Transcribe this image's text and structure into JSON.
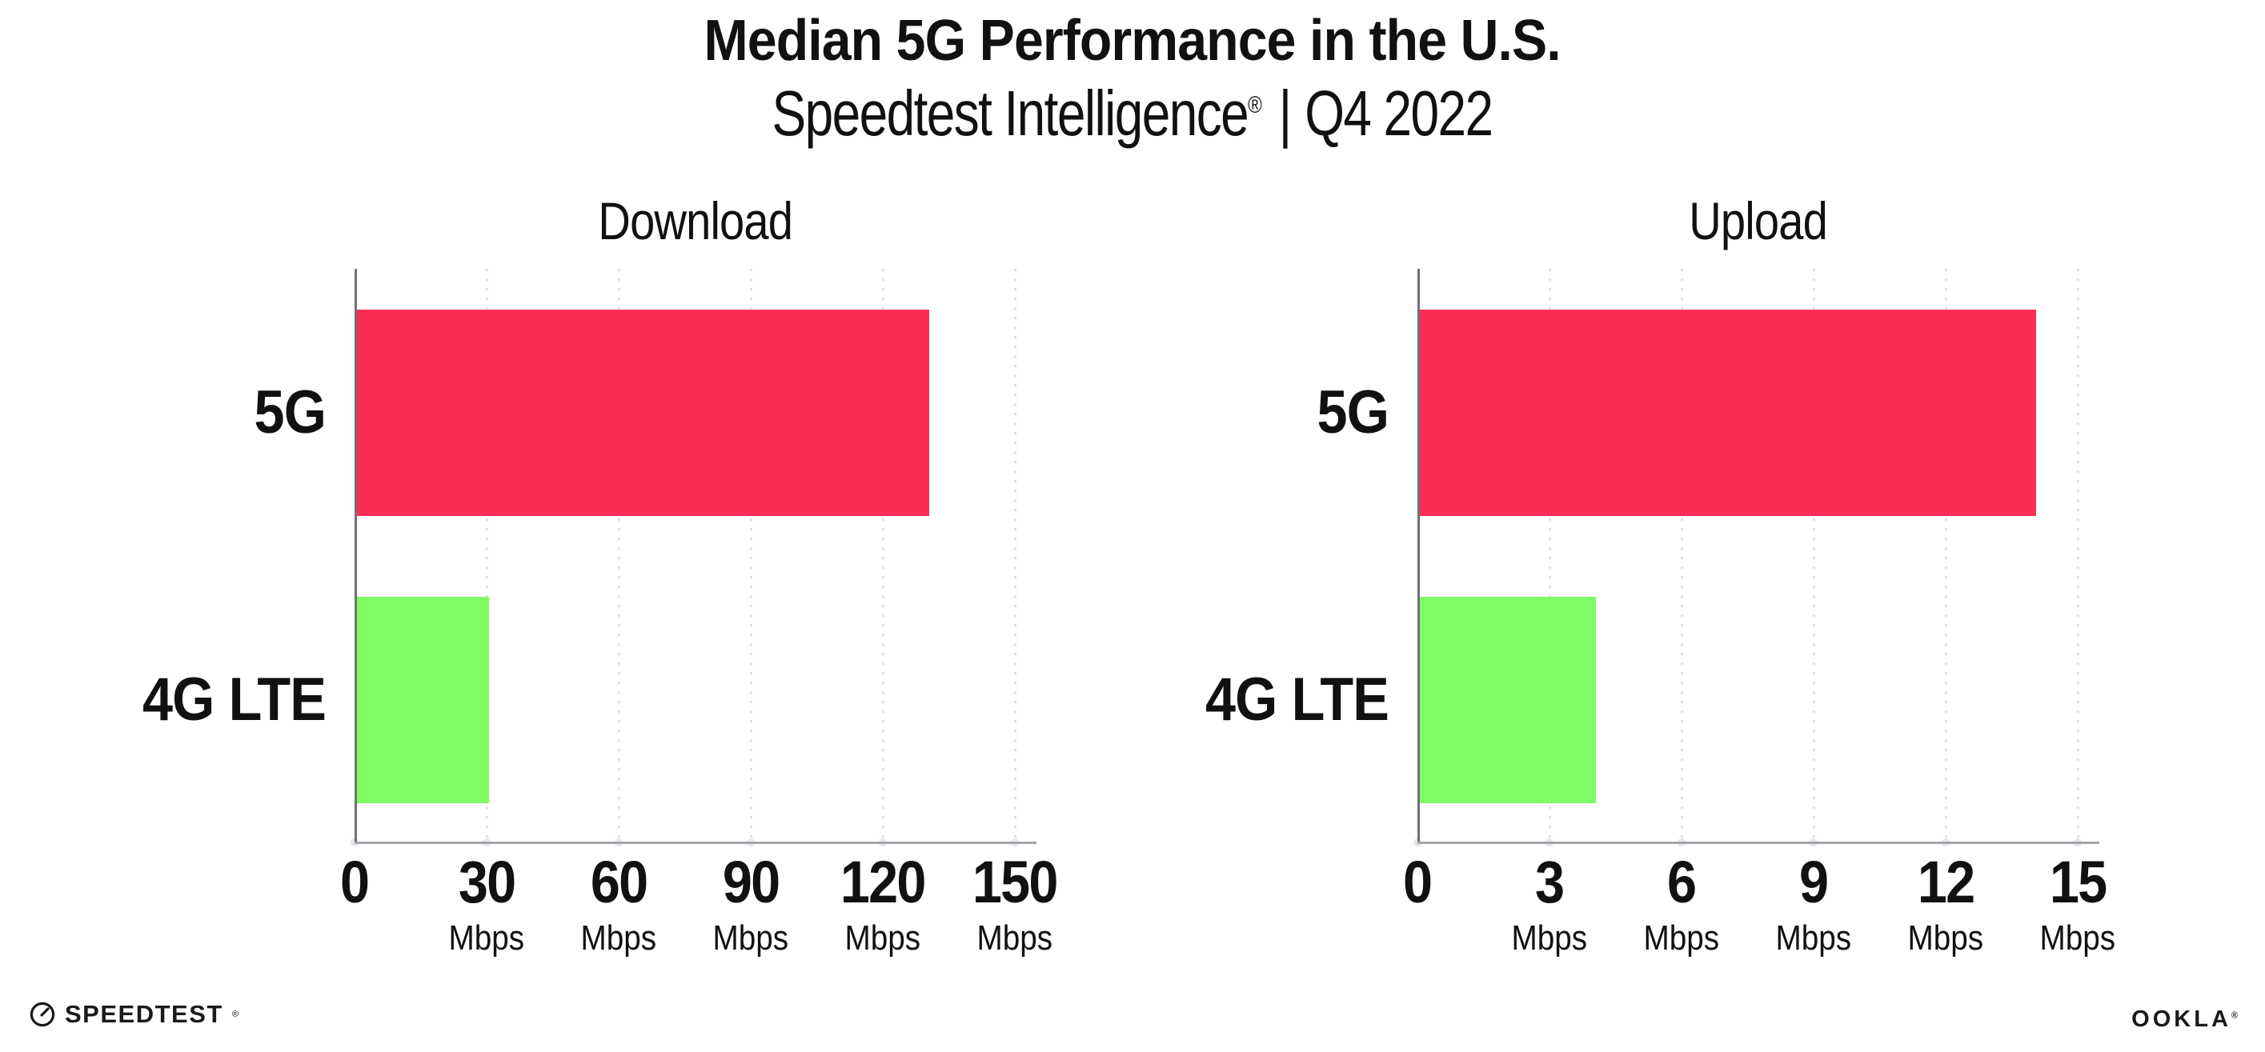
{
  "header": {
    "title": "Median 5G Performance in the U.S.",
    "subtitle": {
      "brand": "Speedtest Intelligence",
      "reg": "®",
      "separator": "|",
      "period": "Q4 2022"
    }
  },
  "footer": {
    "speedtest": {
      "label": "SPEEDTEST",
      "reg": "®"
    },
    "ookla": {
      "label": "OOKLA",
      "reg": "®"
    }
  },
  "colors": {
    "background": "#ffffff",
    "text": "#111111",
    "bar_5g": "#FC2D55",
    "bar_4g_lte": "#7FFB63",
    "grid": "#E2E2EC",
    "axis_x": "#A5A5AD",
    "axis_y": "#70707A"
  },
  "chart_data": [
    {
      "type": "bar",
      "orientation": "horizontal",
      "title": "Download",
      "categories": [
        "5G",
        "4G LTE"
      ],
      "values": [
        130,
        30
      ],
      "unit": "Mbps",
      "xlabel": "Mbps",
      "xlim": [
        0,
        150
      ],
      "xticks": [
        0,
        30,
        60,
        90,
        120,
        150
      ],
      "grid": "dotted-vertical",
      "legend": "none",
      "bar_colors": [
        "#FC2D55",
        "#7FFB63"
      ]
    },
    {
      "type": "bar",
      "orientation": "horizontal",
      "title": "Upload",
      "categories": [
        "5G",
        "4G LTE"
      ],
      "values": [
        14,
        4
      ],
      "unit": "Mbps",
      "xlabel": "Mbps",
      "xlim": [
        0,
        15
      ],
      "xticks": [
        0,
        3,
        6,
        9,
        12,
        15
      ],
      "grid": "dotted-vertical",
      "legend": "none",
      "bar_colors": [
        "#FC2D55",
        "#7FFB63"
      ]
    }
  ]
}
